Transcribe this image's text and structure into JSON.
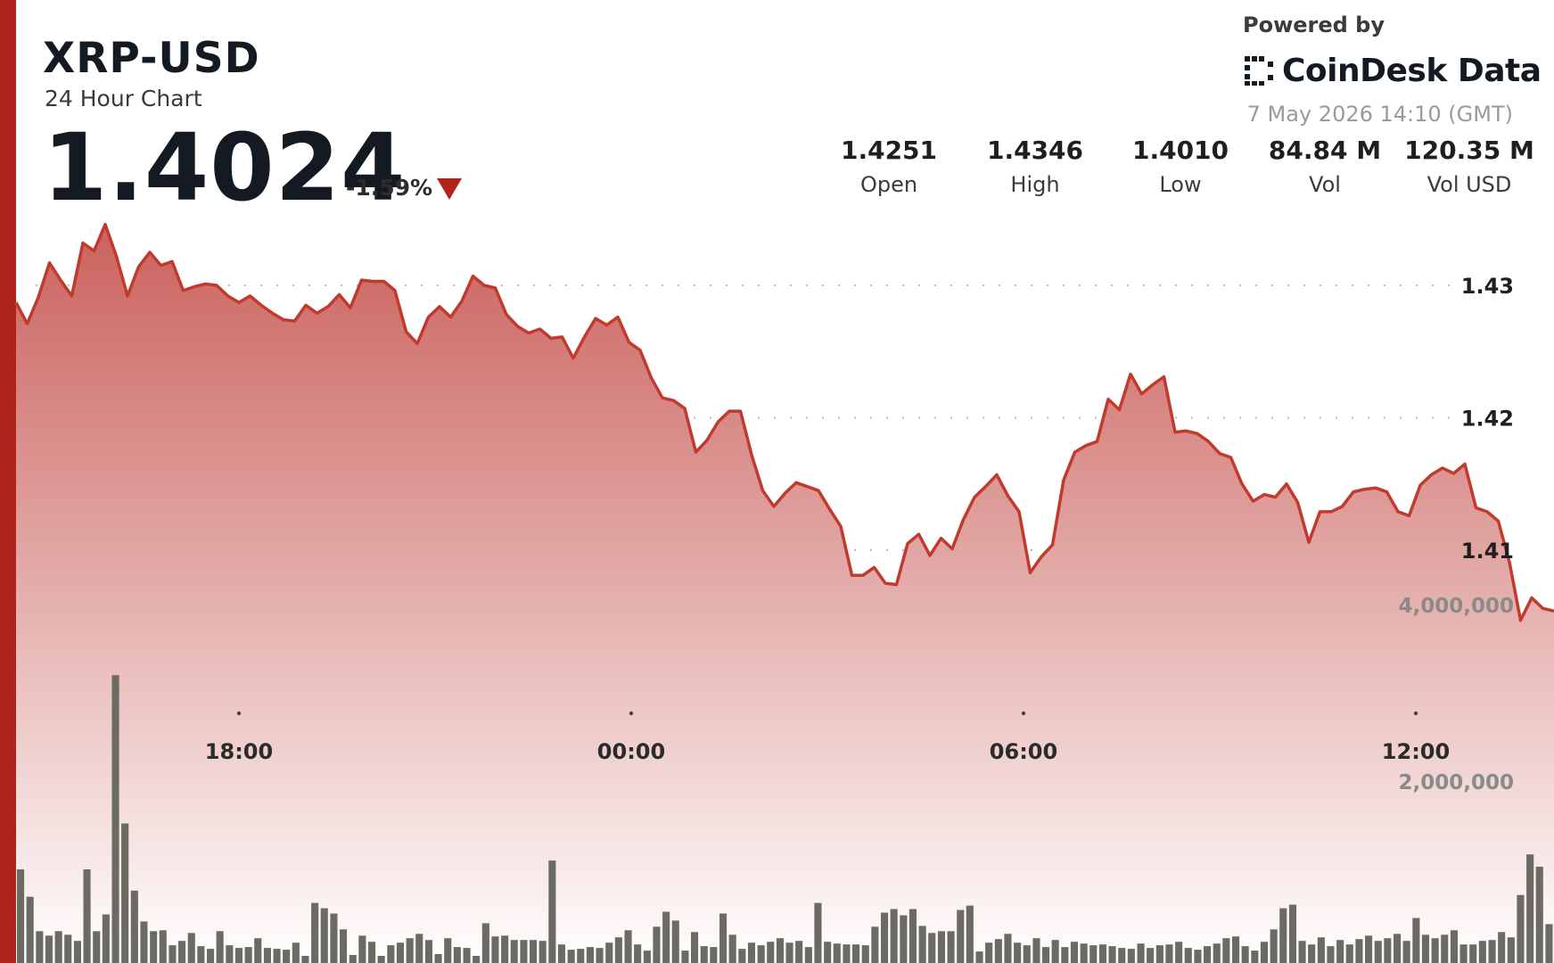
{
  "header": {
    "symbol": "XRP-USD",
    "subtitle": "24 Hour Chart",
    "price": "1.4024",
    "change": "-1.59%",
    "direction": "down"
  },
  "branding": {
    "powered_by": "Powered by",
    "name": "CoinDesk Data",
    "timestamp": "7 May 2026 14:10 (GMT)"
  },
  "stats": [
    {
      "value": "1.4251",
      "label": "Open"
    },
    {
      "value": "1.4346",
      "label": "High"
    },
    {
      "value": "1.4010",
      "label": "Low"
    },
    {
      "value": "84.84 M",
      "label": "Vol"
    },
    {
      "value": "120.35 M",
      "label": "Vol USD"
    }
  ],
  "colors": {
    "accent": "#b1241b",
    "line": "#c23a2e",
    "fill_top": "#c85a55",
    "fill_bottom": "#ffffff",
    "volume": "#6b6b63",
    "grid": "#b8b8b8"
  },
  "chart_data": [
    {
      "type": "area",
      "series": [
        {
          "name": "XRP-USD",
          "start_time": "2026-05-06 14:10",
          "interval_minutes": 10,
          "values": [
            1.4287,
            1.4271,
            1.4291,
            1.4317,
            1.4304,
            1.4292,
            1.4332,
            1.4326,
            1.4346,
            1.4322,
            1.4292,
            1.4314,
            1.4325,
            1.4315,
            1.4318,
            1.4296,
            1.4299,
            1.4301,
            1.43,
            1.4292,
            1.4287,
            1.4292,
            1.4285,
            1.4279,
            1.4274,
            1.4273,
            1.4285,
            1.4279,
            1.4284,
            1.4293,
            1.4283,
            1.4304,
            1.4303,
            1.4303,
            1.4296,
            1.4265,
            1.4256,
            1.4276,
            1.4284,
            1.4276,
            1.4288,
            1.4307,
            1.43,
            1.4298,
            1.4278,
            1.4269,
            1.4264,
            1.4267,
            1.426,
            1.4261,
            1.4245,
            1.4261,
            1.4275,
            1.427,
            1.4276,
            1.4257,
            1.4251,
            1.423,
            1.4215,
            1.4213,
            1.4207,
            1.4174,
            1.4183,
            1.4197,
            1.4205,
            1.4205,
            1.4172,
            1.4145,
            1.4133,
            1.4143,
            1.4151,
            1.4148,
            1.4145,
            1.4131,
            1.4118,
            1.4081,
            1.4081,
            1.4087,
            1.4075,
            1.4074,
            1.4105,
            1.4112,
            1.4096,
            1.4109,
            1.4101,
            1.4123,
            1.414,
            1.4148,
            1.4157,
            1.4141,
            1.4129,
            1.4083,
            1.4095,
            1.4104,
            1.4153,
            1.4174,
            1.4179,
            1.4182,
            1.4214,
            1.4206,
            1.4233,
            1.4218,
            1.4225,
            1.4231,
            1.4189,
            1.419,
            1.4188,
            1.4182,
            1.4173,
            1.417,
            1.415,
            1.4137,
            1.4142,
            1.414,
            1.415,
            1.4136,
            1.4106,
            1.4129,
            1.4129,
            1.4133,
            1.4144,
            1.4146,
            1.4147,
            1.4144,
            1.4129,
            1.4126,
            1.4149,
            1.4157,
            1.4162,
            1.4158,
            1.4165,
            1.4132,
            1.4129,
            1.4122,
            1.4091,
            1.4047,
            1.4064,
            1.4056,
            1.4054
          ]
        }
      ],
      "x_ticks": [
        "18:00",
        "00:00",
        "06:00",
        "12:00"
      ],
      "y_ticks": [
        "1.43",
        "1.42",
        "1.41"
      ],
      "ylim": [
        1.4,
        1.4355
      ],
      "grid": true
    },
    {
      "type": "bar",
      "series": [
        {
          "name": "Volume",
          "values": [
            1000000,
            690000,
            300000,
            250000,
            300000,
            260000,
            190000,
            1000000,
            300000,
            490000,
            3200000,
            1520000,
            760000,
            410000,
            300000,
            310000,
            140000,
            190000,
            280000,
            130000,
            100000,
            300000,
            140000,
            110000,
            120000,
            220000,
            110000,
            100000,
            90000,
            170000,
            20000,
            620000,
            560000,
            500000,
            320000,
            30000,
            250000,
            180000,
            20000,
            140000,
            170000,
            220000,
            270000,
            200000,
            40000,
            220000,
            120000,
            110000,
            20000,
            390000,
            240000,
            250000,
            200000,
            200000,
            200000,
            190000,
            1100000,
            150000,
            90000,
            100000,
            120000,
            110000,
            170000,
            230000,
            310000,
            150000,
            80000,
            350000,
            520000,
            420000,
            80000,
            290000,
            130000,
            120000,
            500000,
            260000,
            100000,
            170000,
            140000,
            180000,
            220000,
            170000,
            190000,
            120000,
            620000,
            180000,
            160000,
            150000,
            150000,
            140000,
            350000,
            510000,
            550000,
            480000,
            550000,
            360000,
            280000,
            300000,
            300000,
            540000,
            590000,
            70000,
            170000,
            210000,
            270000,
            170000,
            140000,
            220000,
            120000,
            200000,
            120000,
            180000,
            160000,
            140000,
            150000,
            130000,
            110000,
            100000,
            160000,
            110000,
            140000,
            150000,
            180000,
            110000,
            90000,
            130000,
            160000,
            220000,
            240000,
            130000,
            80000,
            180000,
            320000,
            560000,
            600000,
            190000,
            150000,
            230000,
            130000,
            200000,
            150000,
            210000,
            250000,
            190000,
            220000,
            270000,
            190000,
            450000,
            260000,
            220000,
            260000,
            310000,
            150000,
            150000,
            190000,
            200000,
            290000,
            230000,
            710000,
            1170000,
            1030000,
            380000
          ]
        }
      ],
      "y_ticks": [
        "4,000,000",
        "2,000,000"
      ],
      "ylim": [
        0,
        5000000
      ],
      "grid": true
    }
  ]
}
